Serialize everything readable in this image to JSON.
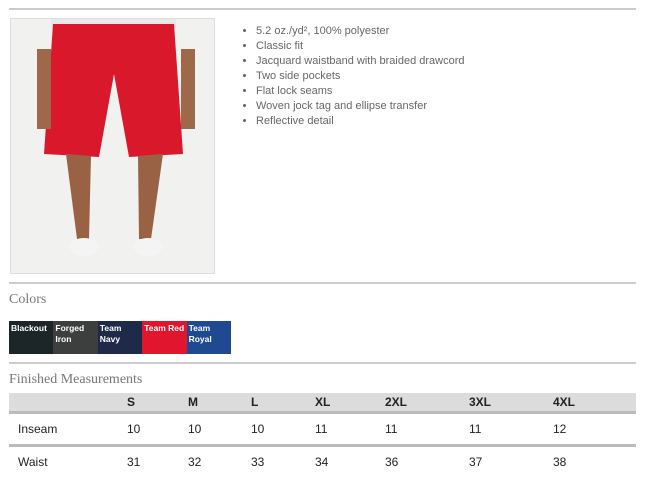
{
  "product": {
    "features": [
      "5.2 oz./yd², 100% polyester",
      "Classic fit",
      "Jacquard waistband with braided drawcord",
      "Two side pockets",
      "Flat lock seams",
      "Woven jock tag and ellipse transfer",
      "Reflective detail"
    ]
  },
  "colors": {
    "title": "Colors",
    "swatches": [
      {
        "name": "Blackout",
        "hex": "#1c2628"
      },
      {
        "name": "Forged Iron",
        "hex": "#3c3f3e"
      },
      {
        "name": "Team Navy",
        "hex": "#1f2a4b"
      },
      {
        "name": "Team Red",
        "hex": "#e1152e"
      },
      {
        "name": "Team Royal",
        "hex": "#1f4a92"
      }
    ]
  },
  "measurements": {
    "title": "Finished Measurements",
    "headers": [
      "",
      "S",
      "M",
      "L",
      "XL",
      "2XL",
      "3XL",
      "4XL"
    ],
    "rows": [
      [
        "Inseam",
        "10",
        "10",
        "10",
        "11",
        "11",
        "11",
        "12"
      ],
      [
        "Waist",
        "31",
        "32",
        "33",
        "34",
        "36",
        "37",
        "38"
      ]
    ]
  }
}
